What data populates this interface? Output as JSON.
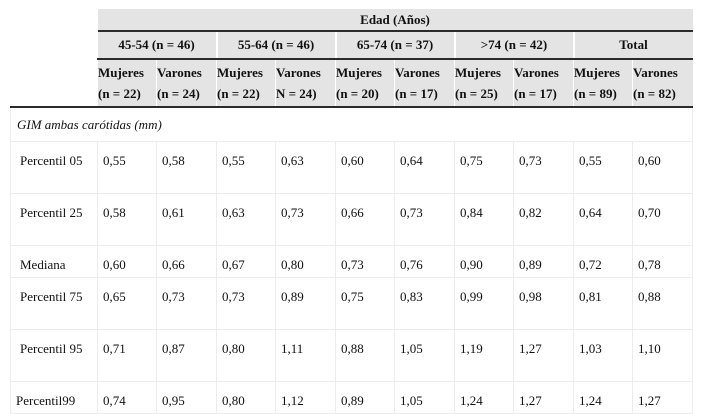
{
  "table": {
    "super_header": "Edad (Años)",
    "groups": [
      {
        "label": "45-54 (n = 46)",
        "cols": [
          {
            "sex": "Mujeres",
            "n": "(n = 22)"
          },
          {
            "sex": "Varones",
            "n": "(n = 24)"
          }
        ]
      },
      {
        "label": "55-64 (n = 46)",
        "cols": [
          {
            "sex": "Mujeres",
            "n": "(n = 22)"
          },
          {
            "sex": "Varones",
            "n": "N = 24)"
          }
        ]
      },
      {
        "label": "65-74 (n = 37)",
        "cols": [
          {
            "sex": "Mujeres",
            "n": "(n = 20)"
          },
          {
            "sex": "Varones",
            "n": "(n = 17)"
          }
        ]
      },
      {
        "label": ">74 (n = 42)",
        "cols": [
          {
            "sex": "Mujeres",
            "n": "(n = 25)"
          },
          {
            "sex": "Varones",
            "n": "(n = 17)"
          }
        ]
      },
      {
        "label": "Total",
        "cols": [
          {
            "sex": "Mujeres",
            "n": "(n = 89)"
          },
          {
            "sex": "Varones",
            "n": "(n = 82)"
          }
        ]
      }
    ],
    "section_label": "GIM ambas carótidas (mm)",
    "rows": [
      {
        "label": "Percentil 05",
        "values": [
          "0,55",
          "0,58",
          "0,55",
          "0,63",
          "0,60",
          "0,64",
          "0,75",
          "0,73",
          "0,55",
          "0,60"
        ]
      },
      {
        "label": "Percentil 25",
        "values": [
          "0,58",
          "0,61",
          "0,63",
          "0,73",
          "0,66",
          "0,73",
          "0,84",
          "0,82",
          "0,64",
          "0,70"
        ]
      },
      {
        "label": "Mediana",
        "values": [
          "0,60",
          "0,66",
          "0,67",
          "0,80",
          "0,73",
          "0,76",
          "0,90",
          "0,89",
          "0,72",
          "0,78"
        ]
      },
      {
        "label": "Percentil 75",
        "values": [
          "0,65",
          "0,73",
          "0,73",
          "0,89",
          "0,75",
          "0,83",
          "0,99",
          "0,98",
          "0,81",
          "0,88"
        ]
      },
      {
        "label": "Percentil 95",
        "values": [
          "0,71",
          "0,87",
          "0,80",
          "1,11",
          "0,88",
          "1,05",
          "1,19",
          "1,27",
          "1,03",
          "1,10"
        ]
      },
      {
        "label": "Percentil99",
        "values": [
          "0,74",
          "0,95",
          "0,80",
          "1,12",
          "0,89",
          "1,05",
          "1,24",
          "1,27",
          "1,24",
          "1,27"
        ]
      }
    ]
  }
}
